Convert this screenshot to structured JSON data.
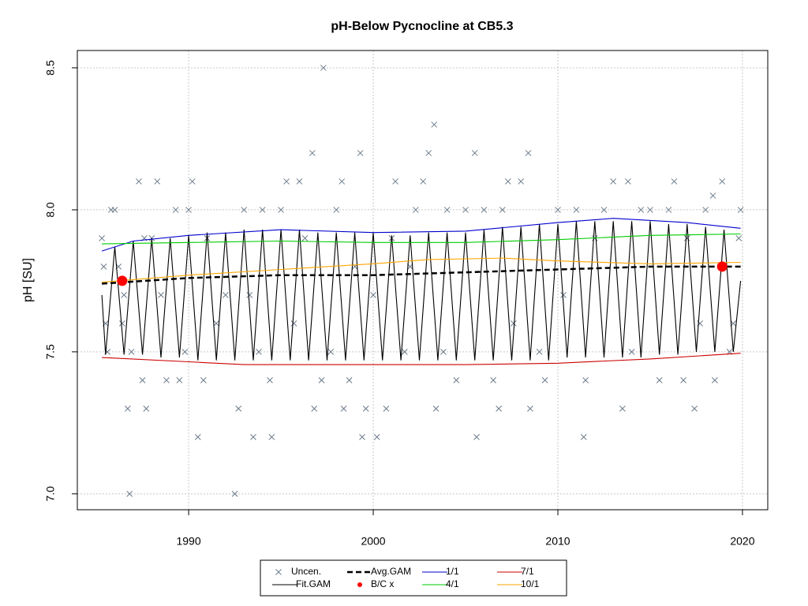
{
  "chart_data": {
    "type": "line",
    "title": "pH-Below Pycnocline at CB5.3",
    "ylabel": "pH [SU]",
    "xlim": [
      1983.97,
      2021.37
    ],
    "ylim": [
      6.944,
      8.561
    ],
    "xticks": [
      1990,
      2000,
      2010,
      2020
    ],
    "yticks": [
      {
        "value": 7,
        "label": "7.0"
      },
      7.5,
      {
        "value": 8,
        "label": "8.0"
      },
      8.5
    ],
    "grid": true,
    "legend": "bottom",
    "series": [
      {
        "name": "Uncen.",
        "color": "#6c7b8b",
        "style": "points",
        "x": [
          1985.3,
          1985.4,
          1985.5,
          1985.6,
          1985.8,
          1986,
          1986.2,
          1986.4,
          1986.5,
          1986.7,
          1986.8,
          1986.9,
          1987.3,
          1987.5,
          1987.7,
          1987.6,
          1988,
          1988.3,
          1988.5,
          1988.8,
          1989.3,
          1989.5,
          1989.8,
          1990,
          1990.2,
          1990.5,
          1990.8,
          1991,
          1991.5,
          1992,
          1992.5,
          1992.7,
          1993,
          1993.3,
          1993.5,
          1993.8,
          1994,
          1994.4,
          1994.5,
          1995,
          1995.3,
          1995.7,
          1996,
          1996.3,
          1996.7,
          1996.8,
          1997.2,
          1997.3,
          1997.7,
          1998,
          1998.3,
          1998.4,
          1998.7,
          1999,
          1999.3,
          1999.4,
          1999.6,
          2000,
          2000.2,
          2000.7,
          2001,
          2001.2,
          2001.7,
          2002,
          2002.3,
          2002.7,
          2003,
          2003.3,
          2003.4,
          2003.8,
          2004,
          2004.5,
          2005,
          2005.5,
          2005.6,
          2006,
          2006.5,
          2006.8,
          2007,
          2007.3,
          2007.6,
          2008,
          2008.4,
          2008.5,
          2009,
          2009.3,
          2010,
          2010.3,
          2011,
          2011.4,
          2011.5,
          2012,
          2012.5,
          2013,
          2013.5,
          2013.8,
          2014,
          2014.5,
          2015,
          2015.5,
          2016,
          2016.3,
          2016.8,
          2017,
          2017.4,
          2017.7,
          2018,
          2018.4,
          2018.5,
          2018.9,
          2019.3,
          2019.5,
          2019.8,
          2019.9
        ],
        "values": [
          7.9,
          7.8,
          7.6,
          7.5,
          8.0,
          8.0,
          7.8,
          7.6,
          7.7,
          7.3,
          7.0,
          7.5,
          8.1,
          7.4,
          7.3,
          7.9,
          7.9,
          8.1,
          7.7,
          7.4,
          8.0,
          7.4,
          7.5,
          8.0,
          8.1,
          7.2,
          7.4,
          7.9,
          7.6,
          7.7,
          7.0,
          7.3,
          8.0,
          7.7,
          7.2,
          7.5,
          8.0,
          7.4,
          7.2,
          8.0,
          8.1,
          7.6,
          8.1,
          7.9,
          8.2,
          7.3,
          7.4,
          8.5,
          7.5,
          8.0,
          8.1,
          7.3,
          7.4,
          7.8,
          8.2,
          7.2,
          7.3,
          7.7,
          7.2,
          7.3,
          7.9,
          8.1,
          7.5,
          7.8,
          8.0,
          8.1,
          8.2,
          8.3,
          7.3,
          7.5,
          8.0,
          7.4,
          8.0,
          8.2,
          7.2,
          8.0,
          7.4,
          7.3,
          8.0,
          8.1,
          7.6,
          8.1,
          8.2,
          7.3,
          7.5,
          7.4,
          8.0,
          7.7,
          8.0,
          7.2,
          7.4,
          7.9,
          8.0,
          8.1,
          7.3,
          8.1,
          7.5,
          8.0,
          8.0,
          7.4,
          8.0,
          8.1,
          7.4,
          7.9,
          7.3,
          7.6,
          8.0,
          8.05,
          7.4,
          8.1,
          7.5,
          7.6,
          7.9,
          8.0
        ]
      },
      {
        "name": "Fit.GAM",
        "color": "#000000",
        "style": "line",
        "x": [
          1985.3,
          1985.5,
          1986,
          1986.5,
          1987,
          1987.5,
          1988,
          1988.5,
          1989,
          1989.5,
          1990,
          1990.5,
          1991,
          1991.5,
          1992,
          1992.5,
          1993,
          1993.5,
          1994,
          1994.5,
          1995,
          1995.5,
          1996,
          1996.5,
          1997,
          1997.5,
          1998,
          1998.5,
          1999,
          1999.5,
          2000,
          2000.5,
          2001,
          2001.5,
          2002,
          2002.5,
          2003,
          2003.5,
          2004,
          2004.5,
          2005,
          2005.5,
          2006,
          2006.5,
          2007,
          2007.5,
          2008,
          2008.5,
          2009,
          2009.5,
          2010,
          2010.5,
          2011,
          2011.5,
          2012,
          2012.5,
          2013,
          2013.5,
          2014,
          2014.5,
          2015,
          2015.5,
          2016,
          2016.5,
          2017,
          2017.5,
          2018,
          2018.5,
          2019,
          2019.5,
          2019.9
        ],
        "values": [
          7.7,
          7.49,
          7.87,
          7.49,
          7.89,
          7.49,
          7.9,
          7.48,
          7.9,
          7.48,
          7.91,
          7.47,
          7.92,
          7.47,
          7.92,
          7.47,
          7.93,
          7.47,
          7.93,
          7.47,
          7.93,
          7.47,
          7.93,
          7.47,
          7.92,
          7.47,
          7.92,
          7.47,
          7.92,
          7.47,
          7.92,
          7.47,
          7.91,
          7.47,
          7.91,
          7.47,
          7.92,
          7.47,
          7.92,
          7.47,
          7.92,
          7.47,
          7.93,
          7.47,
          7.94,
          7.47,
          7.94,
          7.47,
          7.95,
          7.47,
          7.95,
          7.48,
          7.96,
          7.48,
          7.96,
          7.48,
          7.96,
          7.48,
          7.96,
          7.48,
          7.96,
          7.49,
          7.95,
          7.49,
          7.95,
          7.5,
          7.94,
          7.5,
          7.93,
          7.5,
          7.75
        ]
      },
      {
        "name": "Avg.GAM",
        "color": "#000000",
        "style": "dashed",
        "x": [
          1985.3,
          1990,
          1995,
          2000,
          2005,
          2010,
          2015,
          2019.9
        ],
        "values": [
          7.74,
          7.76,
          7.77,
          7.77,
          7.78,
          7.79,
          7.8,
          7.8
        ]
      },
      {
        "name": "B/C x",
        "color": "#ff0000",
        "style": "dots",
        "x": [
          1986.4,
          2018.9
        ],
        "values": [
          7.75,
          7.8
        ]
      },
      {
        "name": "1/1",
        "color": "#0000cd",
        "style": "line",
        "x": [
          1985.3,
          1987,
          1990,
          1995,
          2000,
          2005,
          2010,
          2013,
          2017,
          2019.9
        ],
        "values": [
          7.855,
          7.89,
          7.91,
          7.93,
          7.92,
          7.925,
          7.955,
          7.97,
          7.955,
          7.935
        ]
      },
      {
        "name": "4/1",
        "color": "#00cc00",
        "style": "line",
        "x": [
          1985.3,
          1990,
          1995,
          2000,
          2005,
          2010,
          2015,
          2019.9
        ],
        "values": [
          7.88,
          7.885,
          7.89,
          7.885,
          7.885,
          7.895,
          7.91,
          7.915
        ]
      },
      {
        "name": "7/1",
        "color": "#cc0000",
        "style": "line",
        "x": [
          1985.3,
          1990,
          1993,
          2000,
          2005,
          2010,
          2015,
          2019.9
        ],
        "values": [
          7.48,
          7.465,
          7.455,
          7.455,
          7.455,
          7.46,
          7.475,
          7.495
        ]
      },
      {
        "name": "10/1",
        "color": "#ffa500",
        "style": "line",
        "x": [
          1985.3,
          1990,
          1995,
          2000,
          2003,
          2007,
          2010,
          2015,
          2019.9
        ],
        "values": [
          7.745,
          7.77,
          7.79,
          7.81,
          7.825,
          7.83,
          7.82,
          7.81,
          7.815
        ]
      }
    ]
  }
}
